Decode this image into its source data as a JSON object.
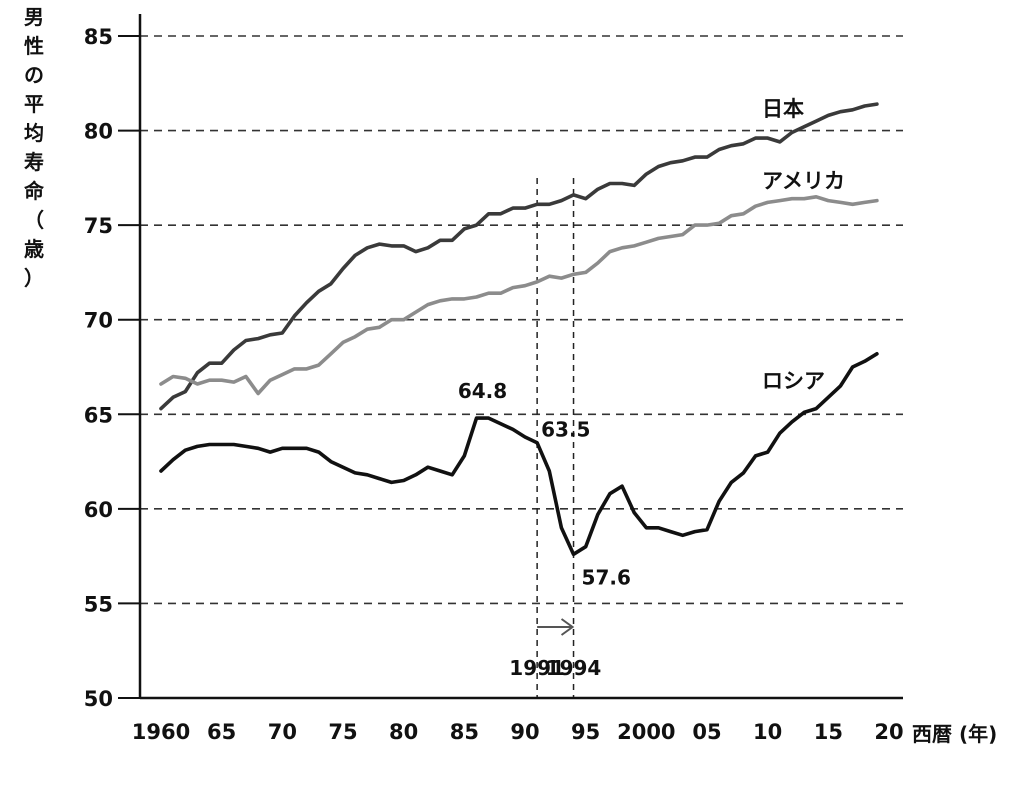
{
  "chart_data": {
    "type": "line",
    "title": "",
    "ylabel": "男性の平均寿命（歳）",
    "xlabel": "西暦 (年)",
    "ylim": [
      50,
      85
    ],
    "xlim": [
      1958,
      2020
    ],
    "yticks": [
      50,
      55,
      60,
      65,
      70,
      75,
      80,
      85
    ],
    "xticks": [
      {
        "value": 1960,
        "label": "1960"
      },
      {
        "value": 1965,
        "label": "65"
      },
      {
        "value": 1970,
        "label": "70"
      },
      {
        "value": 1975,
        "label": "75"
      },
      {
        "value": 1980,
        "label": "80"
      },
      {
        "value": 1985,
        "label": "85"
      },
      {
        "value": 1990,
        "label": "90"
      },
      {
        "value": 1995,
        "label": "95"
      },
      {
        "value": 2000,
        "label": "2000"
      },
      {
        "value": 2005,
        "label": "05"
      },
      {
        "value": 2010,
        "label": "10"
      },
      {
        "value": 2015,
        "label": "15"
      },
      {
        "value": 2020,
        "label": "20"
      }
    ],
    "grid": "horizontal-dashed",
    "series": [
      {
        "name": "日本",
        "color": "#3a3a3a",
        "x": [
          1960,
          1961,
          1962,
          1963,
          1964,
          1965,
          1966,
          1967,
          1968,
          1969,
          1970,
          1971,
          1972,
          1973,
          1974,
          1975,
          1976,
          1977,
          1978,
          1979,
          1980,
          1981,
          1982,
          1983,
          1984,
          1985,
          1986,
          1987,
          1988,
          1989,
          1990,
          1991,
          1992,
          1993,
          1994,
          1995,
          1996,
          1997,
          1998,
          1999,
          2000,
          2001,
          2002,
          2003,
          2004,
          2005,
          2006,
          2007,
          2008,
          2009,
          2010,
          2011,
          2012,
          2013,
          2014,
          2015,
          2016,
          2017,
          2018,
          2019
        ],
        "y": [
          65.3,
          65.9,
          66.2,
          67.2,
          67.7,
          67.7,
          68.4,
          68.9,
          69.0,
          69.2,
          69.3,
          70.2,
          70.9,
          71.5,
          71.9,
          72.7,
          73.4,
          73.8,
          74.0,
          73.9,
          73.9,
          73.6,
          73.8,
          74.2,
          74.2,
          74.8,
          75.0,
          75.6,
          75.6,
          75.9,
          75.9,
          76.1,
          76.1,
          76.3,
          76.6,
          76.4,
          76.9,
          77.2,
          77.2,
          77.1,
          77.7,
          78.1,
          78.3,
          78.4,
          78.6,
          78.6,
          79.0,
          79.2,
          79.3,
          79.6,
          79.6,
          79.4,
          79.9,
          80.2,
          80.5,
          80.8,
          81.0,
          81.1,
          81.3,
          81.4
        ]
      },
      {
        "name": "アメリカ",
        "color": "#8c8c8c",
        "x": [
          1960,
          1961,
          1962,
          1963,
          1964,
          1965,
          1966,
          1967,
          1968,
          1969,
          1970,
          1971,
          1972,
          1973,
          1974,
          1975,
          1976,
          1977,
          1978,
          1979,
          1980,
          1981,
          1982,
          1983,
          1984,
          1985,
          1986,
          1987,
          1988,
          1989,
          1990,
          1991,
          1992,
          1993,
          1994,
          1995,
          1996,
          1997,
          1998,
          1999,
          2000,
          2001,
          2002,
          2003,
          2004,
          2005,
          2006,
          2007,
          2008,
          2009,
          2010,
          2011,
          2012,
          2013,
          2014,
          2015,
          2016,
          2017,
          2018,
          2019
        ],
        "y": [
          66.6,
          67.0,
          66.9,
          66.6,
          66.8,
          66.8,
          66.7,
          67.0,
          66.1,
          66.8,
          67.1,
          67.4,
          67.4,
          67.6,
          68.2,
          68.8,
          69.1,
          69.5,
          69.6,
          70.0,
          70.0,
          70.4,
          70.8,
          71.0,
          71.1,
          71.1,
          71.2,
          71.4,
          71.4,
          71.7,
          71.8,
          72.0,
          72.3,
          72.2,
          72.4,
          72.5,
          73.0,
          73.6,
          73.8,
          73.9,
          74.1,
          74.3,
          74.4,
          74.5,
          75.0,
          75.0,
          75.1,
          75.5,
          75.6,
          76.0,
          76.2,
          76.3,
          76.4,
          76.4,
          76.5,
          76.3,
          76.2,
          76.1,
          76.2,
          76.3
        ]
      },
      {
        "name": "ロシア",
        "color": "#111111",
        "x": [
          1960,
          1961,
          1962,
          1963,
          1964,
          1965,
          1966,
          1967,
          1968,
          1969,
          1970,
          1971,
          1972,
          1973,
          1974,
          1975,
          1976,
          1977,
          1978,
          1979,
          1980,
          1981,
          1982,
          1983,
          1984,
          1985,
          1986,
          1987,
          1988,
          1989,
          1990,
          1991,
          1992,
          1993,
          1994,
          1995,
          1996,
          1997,
          1998,
          1999,
          2000,
          2001,
          2002,
          2003,
          2004,
          2005,
          2006,
          2007,
          2008,
          2009,
          2010,
          2011,
          2012,
          2013,
          2014,
          2015,
          2016,
          2017,
          2018,
          2019
        ],
        "y": [
          62.0,
          62.6,
          63.1,
          63.3,
          63.4,
          63.4,
          63.4,
          63.3,
          63.2,
          63.0,
          63.2,
          63.2,
          63.2,
          63.0,
          62.5,
          62.2,
          61.9,
          61.8,
          61.6,
          61.4,
          61.5,
          61.8,
          62.2,
          62.0,
          61.8,
          62.8,
          64.8,
          64.8,
          64.5,
          64.2,
          63.8,
          63.5,
          62.0,
          59.0,
          57.6,
          58.0,
          59.7,
          60.8,
          61.2,
          59.8,
          59.0,
          59.0,
          58.8,
          58.6,
          58.8,
          58.9,
          60.4,
          61.4,
          61.9,
          62.8,
          63.0,
          64.0,
          64.6,
          65.1,
          65.3,
          65.9,
          66.5,
          67.5,
          67.8,
          68.2
        ]
      }
    ],
    "annotations": [
      {
        "text": "64.8",
        "x": 1986.5,
        "y": 64.8
      },
      {
        "text": "63.5",
        "x": 1991,
        "y": 63.5
      },
      {
        "text": "57.6",
        "x": 1994,
        "y": 57.6
      }
    ],
    "reference_lines": [
      {
        "x": 1991,
        "label": "1991"
      },
      {
        "x": 1994,
        "label": "1994"
      }
    ],
    "arrow": {
      "from": 1991,
      "to": 1994
    }
  }
}
